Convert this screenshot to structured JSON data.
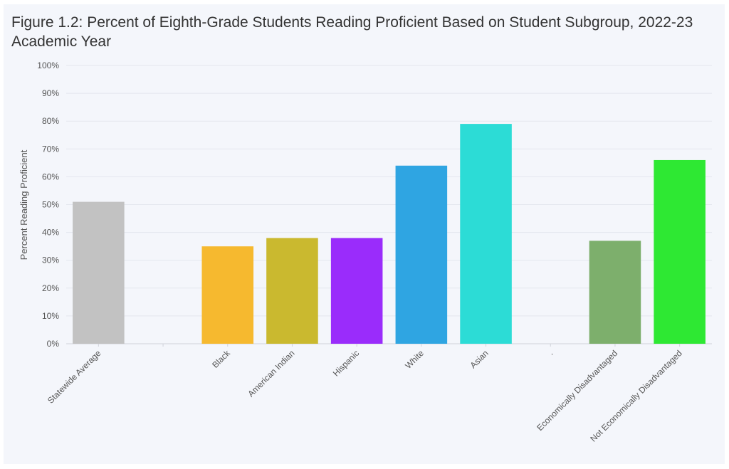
{
  "chart_data": {
    "type": "bar",
    "title": "Figure 1.2: Percent of Eighth-Grade Students Reading Proficient Based on Student Subgroup, 2022-23 Academic Year",
    "xlabel": "",
    "ylabel": "Percent Reading Proficient",
    "ylim": [
      0,
      100
    ],
    "yticks": [
      "0%",
      "10%",
      "20%",
      "30%",
      "40%",
      "50%",
      "60%",
      "70%",
      "80%",
      "90%",
      "100%"
    ],
    "grid": true,
    "legend": "none",
    "categories": [
      "Statewide Average",
      "",
      "Black",
      "American Indian",
      "Hispanic",
      "White",
      "Asian",
      ".",
      "Economically Disadvantaged",
      "Not Economically Disadvantaged"
    ],
    "values": [
      51,
      null,
      35,
      38,
      38,
      64,
      79,
      null,
      37,
      66
    ],
    "colors": [
      "#c2c2c2",
      null,
      "#f6b92f",
      "#cab92f",
      "#9a2cfb",
      "#2fa5e2",
      "#2cdcd6",
      null,
      "#7daf6c",
      "#2ee833"
    ]
  }
}
